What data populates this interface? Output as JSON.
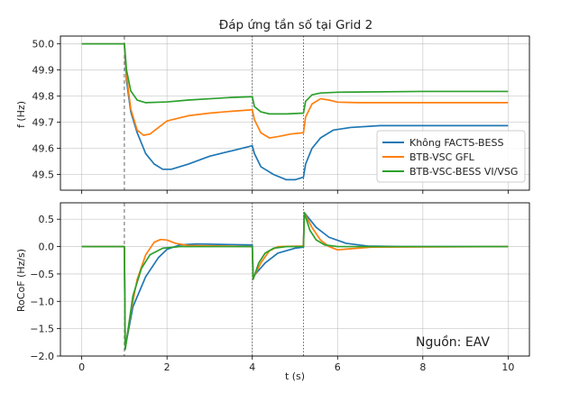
{
  "chart_data": [
    {
      "type": "line",
      "title": "Đáp ứng tần số tại Grid 2",
      "xlabel": "",
      "ylabel": "f (Hz)",
      "xlim": [
        -0.5,
        10.5
      ],
      "ylim": [
        49.44,
        50.03
      ],
      "x_ticks": [
        0,
        2,
        4,
        6,
        8,
        10
      ],
      "y_ticks": [
        49.5,
        49.6,
        49.7,
        49.8,
        49.9,
        50.0
      ],
      "y_tick_labels": [
        "49.5",
        "49.6",
        "49.7",
        "49.8",
        "49.9",
        "50.0"
      ],
      "grid": true,
      "legend_position": "center-right",
      "event_lines": [
        {
          "x": 1,
          "style": "dashed"
        },
        {
          "x": 4,
          "style": "dotted"
        },
        {
          "x": 5.2,
          "style": "dotted"
        }
      ],
      "series": [
        {
          "name": "Không FACTS-BESS",
          "color": "#1f77b4",
          "points": [
            [
              0,
              50.0
            ],
            [
              1.0,
              50.0
            ],
            [
              1.05,
              49.86
            ],
            [
              1.15,
              49.74
            ],
            [
              1.3,
              49.66
            ],
            [
              1.5,
              49.58
            ],
            [
              1.7,
              49.54
            ],
            [
              1.9,
              49.52
            ],
            [
              2.1,
              49.52
            ],
            [
              2.5,
              49.54
            ],
            [
              3.0,
              49.57
            ],
            [
              3.5,
              49.59
            ],
            [
              4.0,
              49.61
            ],
            [
              4.05,
              49.58
            ],
            [
              4.2,
              49.53
            ],
            [
              4.5,
              49.5
            ],
            [
              4.8,
              49.48
            ],
            [
              5.0,
              49.48
            ],
            [
              5.2,
              49.49
            ],
            [
              5.25,
              49.54
            ],
            [
              5.4,
              49.6
            ],
            [
              5.6,
              49.64
            ],
            [
              5.9,
              49.67
            ],
            [
              6.3,
              49.68
            ],
            [
              7.0,
              49.687
            ],
            [
              8.0,
              49.687
            ],
            [
              10.0,
              49.687
            ]
          ]
        },
        {
          "name": "BTB-VSC GFL",
          "color": "#ff7f0e",
          "points": [
            [
              0,
              50.0
            ],
            [
              1.0,
              50.0
            ],
            [
              1.05,
              49.88
            ],
            [
              1.15,
              49.75
            ],
            [
              1.3,
              49.67
            ],
            [
              1.45,
              49.65
            ],
            [
              1.6,
              49.655
            ],
            [
              1.8,
              49.68
            ],
            [
              2.0,
              49.705
            ],
            [
              2.5,
              49.725
            ],
            [
              3.0,
              49.735
            ],
            [
              3.5,
              49.742
            ],
            [
              4.0,
              49.748
            ],
            [
              4.05,
              49.71
            ],
            [
              4.2,
              49.66
            ],
            [
              4.4,
              49.64
            ],
            [
              4.6,
              49.645
            ],
            [
              4.9,
              49.655
            ],
            [
              5.2,
              49.66
            ],
            [
              5.25,
              49.72
            ],
            [
              5.4,
              49.77
            ],
            [
              5.6,
              49.79
            ],
            [
              5.8,
              49.785
            ],
            [
              6.0,
              49.777
            ],
            [
              6.5,
              49.775
            ],
            [
              8.0,
              49.775
            ],
            [
              10.0,
              49.775
            ]
          ]
        },
        {
          "name": "BTB-VSC-BESS VI/VSG",
          "color": "#2ca02c",
          "points": [
            [
              0,
              50.0
            ],
            [
              1.0,
              50.0
            ],
            [
              1.05,
              49.9
            ],
            [
              1.15,
              49.82
            ],
            [
              1.3,
              49.785
            ],
            [
              1.5,
              49.775
            ],
            [
              2.0,
              49.778
            ],
            [
              2.5,
              49.785
            ],
            [
              3.0,
              49.79
            ],
            [
              3.5,
              49.795
            ],
            [
              4.0,
              49.798
            ],
            [
              4.05,
              49.76
            ],
            [
              4.2,
              49.74
            ],
            [
              4.4,
              49.732
            ],
            [
              4.8,
              49.732
            ],
            [
              5.2,
              49.735
            ],
            [
              5.25,
              49.78
            ],
            [
              5.4,
              49.805
            ],
            [
              5.6,
              49.812
            ],
            [
              6.0,
              49.815
            ],
            [
              8.0,
              49.818
            ],
            [
              10.0,
              49.818
            ]
          ]
        }
      ]
    },
    {
      "type": "line",
      "title": "",
      "xlabel": "t (s)",
      "ylabel": "RoCoF (Hz/s)",
      "xlim": [
        -0.5,
        10.5
      ],
      "ylim": [
        -2.0,
        0.8
      ],
      "x_ticks": [
        0,
        2,
        4,
        6,
        8,
        10
      ],
      "x_tick_labels": [
        "0",
        "2",
        "4",
        "6",
        "8",
        "10"
      ],
      "y_ticks": [
        -2.0,
        -1.5,
        -1.0,
        -0.5,
        0.0,
        0.5
      ],
      "y_tick_labels": [
        "−2.0",
        "−1.5",
        "−1.0",
        "−0.5",
        "0.0",
        "0.5"
      ],
      "grid": true,
      "annotation": "Nguồn: EAV",
      "series": [
        {
          "name": "Không FACTS-BESS",
          "color": "#1f77b4",
          "points": [
            [
              0,
              0
            ],
            [
              1.0,
              0
            ],
            [
              1.02,
              -1.85
            ],
            [
              1.2,
              -1.1
            ],
            [
              1.5,
              -0.55
            ],
            [
              1.8,
              -0.2
            ],
            [
              2.0,
              -0.05
            ],
            [
              2.3,
              0.03
            ],
            [
              2.7,
              0.05
            ],
            [
              3.2,
              0.04
            ],
            [
              4.0,
              0.03
            ],
            [
              4.02,
              -0.55
            ],
            [
              4.3,
              -0.3
            ],
            [
              4.6,
              -0.12
            ],
            [
              5.0,
              -0.03
            ],
            [
              5.2,
              -0.01
            ],
            [
              5.22,
              0.62
            ],
            [
              5.5,
              0.35
            ],
            [
              5.8,
              0.17
            ],
            [
              6.2,
              0.06
            ],
            [
              6.7,
              0.01
            ],
            [
              7.5,
              0.0
            ],
            [
              10.0,
              0.0
            ]
          ]
        },
        {
          "name": "BTB-VSC GFL",
          "color": "#ff7f0e",
          "points": [
            [
              0,
              0
            ],
            [
              1.0,
              0
            ],
            [
              1.02,
              -1.87
            ],
            [
              1.15,
              -1.2
            ],
            [
              1.3,
              -0.6
            ],
            [
              1.5,
              -0.15
            ],
            [
              1.7,
              0.08
            ],
            [
              1.85,
              0.13
            ],
            [
              2.0,
              0.12
            ],
            [
              2.2,
              0.06
            ],
            [
              2.5,
              0.02
            ],
            [
              4.0,
              0.0
            ],
            [
              4.02,
              -0.58
            ],
            [
              4.2,
              -0.3
            ],
            [
              4.4,
              -0.08
            ],
            [
              4.6,
              0.0
            ],
            [
              5.2,
              0.01
            ],
            [
              5.22,
              0.62
            ],
            [
              5.4,
              0.35
            ],
            [
              5.6,
              0.12
            ],
            [
              5.8,
              0.0
            ],
            [
              6.0,
              -0.06
            ],
            [
              6.3,
              -0.04
            ],
            [
              6.8,
              -0.01
            ],
            [
              10.0,
              0.0
            ]
          ]
        },
        {
          "name": "BTB-VSC-BESS VI/VSG",
          "color": "#2ca02c",
          "points": [
            [
              0,
              0
            ],
            [
              1.0,
              0
            ],
            [
              1.02,
              -1.88
            ],
            [
              1.2,
              -0.9
            ],
            [
              1.4,
              -0.4
            ],
            [
              1.6,
              -0.15
            ],
            [
              1.9,
              -0.03
            ],
            [
              2.3,
              0.0
            ],
            [
              4.0,
              0.0
            ],
            [
              4.02,
              -0.6
            ],
            [
              4.15,
              -0.3
            ],
            [
              4.3,
              -0.12
            ],
            [
              4.5,
              -0.03
            ],
            [
              4.8,
              0.0
            ],
            [
              5.2,
              0.0
            ],
            [
              5.22,
              0.62
            ],
            [
              5.35,
              0.3
            ],
            [
              5.5,
              0.12
            ],
            [
              5.7,
              0.03
            ],
            [
              6.0,
              0.0
            ],
            [
              10.0,
              0.0
            ]
          ]
        }
      ]
    }
  ]
}
